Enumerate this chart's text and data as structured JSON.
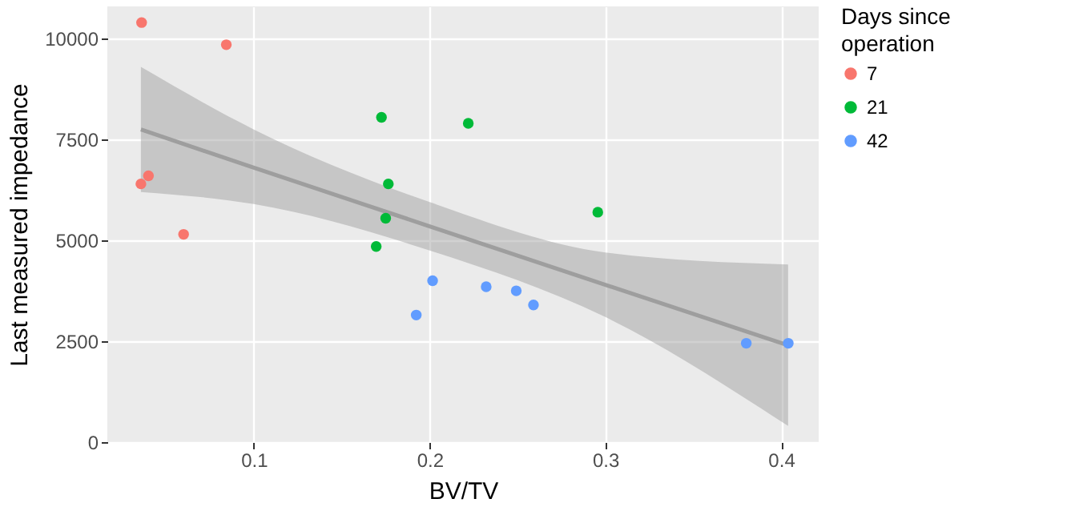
{
  "chart_data": {
    "type": "scatter",
    "xlabel": "BV/TV",
    "ylabel": "Last measured impedance",
    "legend_title": "Days since operation",
    "legend": "right",
    "grid": true,
    "marker": "circle",
    "xlim": [
      0.0166,
      0.4214
    ],
    "ylim": [
      0,
      10800
    ],
    "xticks": [
      0.1,
      0.2,
      0.3,
      0.4
    ],
    "yticks": [
      0,
      2500,
      5000,
      7500,
      10000
    ],
    "series": [
      {
        "type": "line",
        "marker": "none",
        "color": "#999999",
        "x": [
          0.0357,
          0.1,
          0.2,
          0.3,
          0.404
        ],
        "values": [
          7750,
          6800,
          5350,
          3900,
          2400
        ],
        "lower": [
          6200,
          5900,
          4750,
          3100,
          400
        ],
        "upper": [
          9300,
          7750,
          5950,
          4700,
          4400
        ]
      },
      {
        "name": "7",
        "color": "#f8766d",
        "x": [
          0.0361,
          0.0843,
          0.04,
          0.0357,
          0.06
        ],
        "values": [
          10400,
          9850,
          6600,
          6400,
          5150
        ]
      },
      {
        "name": "21",
        "color": "#00ba38",
        "x": [
          0.1726,
          0.1765,
          0.175,
          0.1696,
          0.2957,
          0.222
        ],
        "values": [
          8050,
          6400,
          5550,
          4850,
          5700,
          7900
        ]
      },
      {
        "name": "42",
        "color": "#619cff",
        "x": [
          0.1924,
          0.2017,
          0.2322,
          0.2493,
          0.2591,
          0.3802,
          0.4041
        ],
        "values": [
          3150,
          4000,
          3850,
          3750,
          3400,
          2450,
          2450
        ]
      }
    ]
  }
}
